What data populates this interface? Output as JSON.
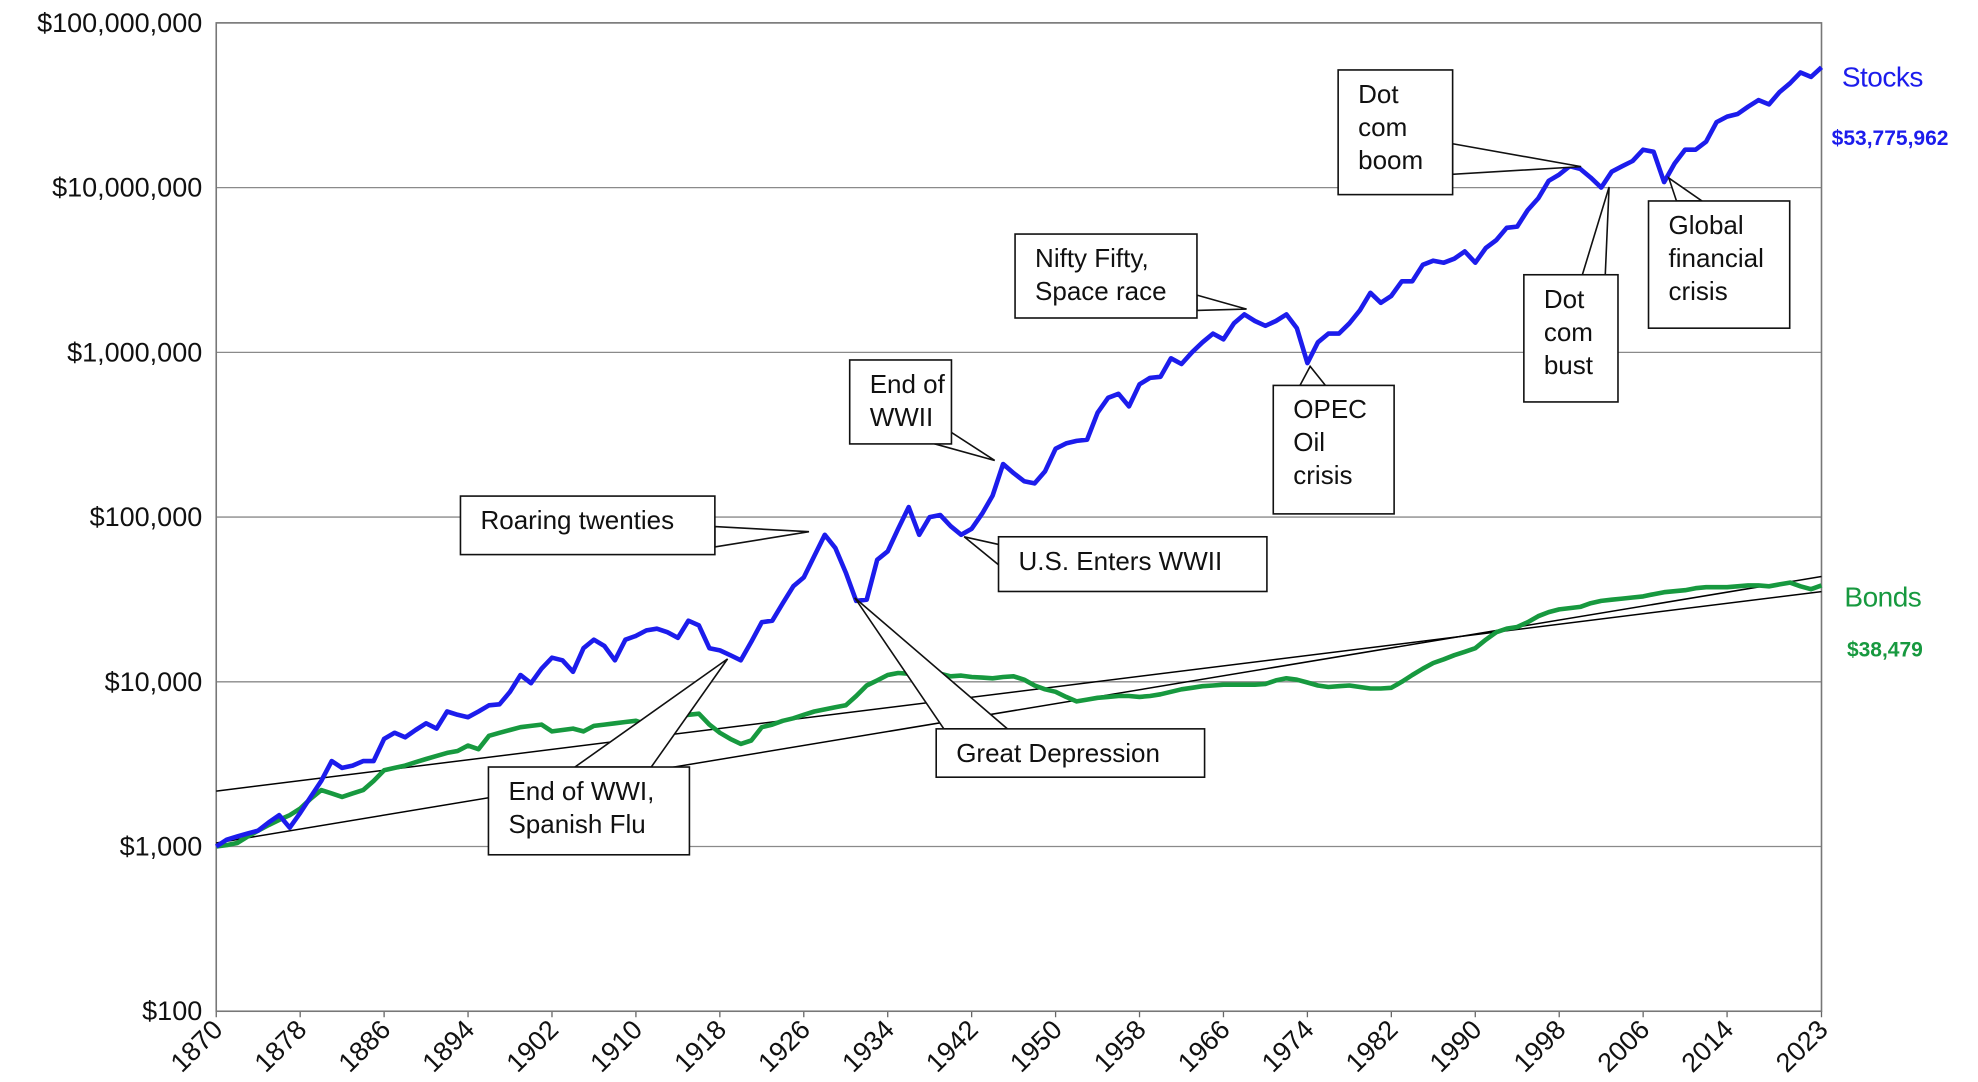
{
  "chart_data": {
    "type": "line",
    "y_scale": "log",
    "grid": true,
    "xlim": [
      1870,
      2023
    ],
    "ylim": [
      100,
      100000000
    ],
    "xticks": [
      1870,
      1878,
      1886,
      1894,
      1902,
      1910,
      1918,
      1926,
      1934,
      1942,
      1950,
      1958,
      1966,
      1974,
      1982,
      1990,
      1998,
      2006,
      2014,
      2023
    ],
    "yticks": [
      {
        "value": 100,
        "label": "$100"
      },
      {
        "value": 1000,
        "label": "$1,000"
      },
      {
        "value": 10000,
        "label": "$10,000"
      },
      {
        "value": 100000,
        "label": "$100,000"
      },
      {
        "value": 1000000,
        "label": "$1,000,000"
      },
      {
        "value": 10000000,
        "label": "$10,000,000"
      },
      {
        "value": 100000000,
        "label": "$100,000,000"
      }
    ],
    "x": [
      1870,
      1871,
      1872,
      1873,
      1874,
      1875,
      1876,
      1877,
      1878,
      1879,
      1880,
      1881,
      1882,
      1883,
      1884,
      1885,
      1886,
      1887,
      1888,
      1889,
      1890,
      1891,
      1892,
      1893,
      1894,
      1895,
      1896,
      1897,
      1898,
      1899,
      1900,
      1901,
      1902,
      1903,
      1904,
      1905,
      1906,
      1907,
      1908,
      1909,
      1910,
      1911,
      1912,
      1913,
      1914,
      1915,
      1916,
      1917,
      1918,
      1919,
      1920,
      1921,
      1922,
      1923,
      1924,
      1925,
      1926,
      1927,
      1928,
      1929,
      1930,
      1931,
      1932,
      1933,
      1934,
      1935,
      1936,
      1937,
      1938,
      1939,
      1940,
      1941,
      1942,
      1943,
      1944,
      1945,
      1946,
      1947,
      1948,
      1949,
      1950,
      1951,
      1952,
      1953,
      1954,
      1955,
      1956,
      1957,
      1958,
      1959,
      1960,
      1961,
      1962,
      1963,
      1964,
      1965,
      1966,
      1967,
      1968,
      1969,
      1970,
      1971,
      1972,
      1973,
      1974,
      1975,
      1976,
      1977,
      1978,
      1979,
      1980,
      1981,
      1982,
      1983,
      1984,
      1985,
      1986,
      1987,
      1988,
      1989,
      1990,
      1991,
      1992,
      1993,
      1994,
      1995,
      1996,
      1997,
      1998,
      1999,
      2000,
      2001,
      2002,
      2003,
      2004,
      2005,
      2006,
      2007,
      2008,
      2009,
      2010,
      2011,
      2012,
      2013,
      2014,
      2015,
      2016,
      2017,
      2018,
      2019,
      2020,
      2021,
      2022,
      2023
    ],
    "series": [
      {
        "name": "Stocks",
        "color": "#1c1cec",
        "last_label": "$53,775,962",
        "values": [
          1000,
          1100,
          1150,
          1200,
          1250,
          1400,
          1550,
          1300,
          1600,
          2000,
          2500,
          3300,
          3000,
          3100,
          3300,
          3300,
          4500,
          4900,
          4600,
          5100,
          5600,
          5200,
          6600,
          6300,
          6100,
          6600,
          7200,
          7300,
          8700,
          11000,
          9800,
          12000,
          14000,
          13500,
          11500,
          16000,
          18000,
          16500,
          13500,
          18000,
          19000,
          20500,
          21000,
          20000,
          18500,
          23500,
          22000,
          16000,
          15500,
          14500,
          13500,
          17500,
          23000,
          23500,
          30000,
          38000,
          43000,
          58000,
          78000,
          65000,
          46000,
          31000,
          31500,
          55000,
          62000,
          85000,
          115000,
          78000,
          100000,
          103000,
          88000,
          78000,
          85000,
          105000,
          135000,
          210000,
          185000,
          165000,
          160000,
          190000,
          260000,
          280000,
          290000,
          295000,
          430000,
          530000,
          560000,
          470000,
          640000,
          700000,
          710000,
          920000,
          850000,
          1000000,
          1150000,
          1300000,
          1200000,
          1500000,
          1700000,
          1550000,
          1450000,
          1550000,
          1700000,
          1400000,
          860000,
          1150000,
          1300000,
          1300000,
          1500000,
          1800000,
          2300000,
          2000000,
          2200000,
          2700000,
          2700000,
          3400000,
          3600000,
          3500000,
          3700000,
          4100000,
          3500000,
          4300000,
          4800000,
          5700000,
          5800000,
          7300000,
          8600000,
          11000000,
          12000000,
          13500000,
          13000000,
          11500000,
          10000000,
          12500000,
          13500000,
          14500000,
          17000000,
          16500000,
          10800000,
          14000000,
          17000000,
          17000000,
          19000000,
          25000000,
          27000000,
          28000000,
          31000000,
          34000000,
          32000000,
          38000000,
          43000000,
          50000000,
          47000000,
          53775962
        ]
      },
      {
        "name": "Bonds",
        "color": "#17993f",
        "last_label": "$38,479",
        "values": [
          1000,
          1020,
          1050,
          1150,
          1250,
          1350,
          1450,
          1550,
          1700,
          1950,
          2200,
          2100,
          2000,
          2100,
          2200,
          2500,
          2900,
          3000,
          3100,
          3250,
          3400,
          3550,
          3700,
          3800,
          4100,
          3900,
          4700,
          4900,
          5100,
          5300,
          5400,
          5500,
          5000,
          5100,
          5200,
          5000,
          5400,
          5500,
          5600,
          5700,
          5800,
          5500,
          6100,
          6400,
          6200,
          6300,
          6400,
          5500,
          4900,
          4500,
          4200,
          4400,
          5300,
          5500,
          5800,
          6000,
          6300,
          6600,
          6800,
          7000,
          7200,
          8200,
          9500,
          10200,
          11000,
          11300,
          11200,
          10800,
          11000,
          11200,
          10800,
          10900,
          10700,
          10600,
          10500,
          10700,
          10800,
          10300,
          9500,
          9000,
          8700,
          8100,
          7600,
          7800,
          8000,
          8100,
          8200,
          8200,
          8100,
          8200,
          8400,
          8700,
          9000,
          9200,
          9400,
          9500,
          9600,
          9600,
          9600,
          9600,
          9700,
          10200,
          10500,
          10300,
          9900,
          9500,
          9300,
          9400,
          9500,
          9300,
          9100,
          9100,
          9200,
          10000,
          11000,
          12000,
          13000,
          13700,
          14500,
          15200,
          16000,
          18000,
          20000,
          21000,
          21500,
          23000,
          25000,
          26500,
          27500,
          28000,
          28500,
          30000,
          31000,
          31500,
          32000,
          32500,
          33000,
          34000,
          35000,
          35500,
          36000,
          37000,
          37500,
          37500,
          37500,
          38000,
          38500,
          38500,
          38000,
          39000,
          40000,
          38000,
          36500,
          38479
        ]
      }
    ],
    "trend_lines": [
      {
        "color": "#000000",
        "x": [
          1870,
          2023
        ],
        "values": [
          1050,
          43600
        ]
      },
      {
        "color": "#000000",
        "x": [
          1870,
          2023
        ],
        "values": [
          2170,
          35300
        ]
      }
    ],
    "annotations": [
      "Roaring twenties",
      "End of WWII",
      "Nifty Fifty, Space race",
      "Dot com boom",
      "Dot com bust",
      "Global financial crisis",
      "OPEC Oil crisis",
      "U.S. Enters WWII",
      "Great Depression",
      "End of WWI, Spanish Flu"
    ]
  }
}
